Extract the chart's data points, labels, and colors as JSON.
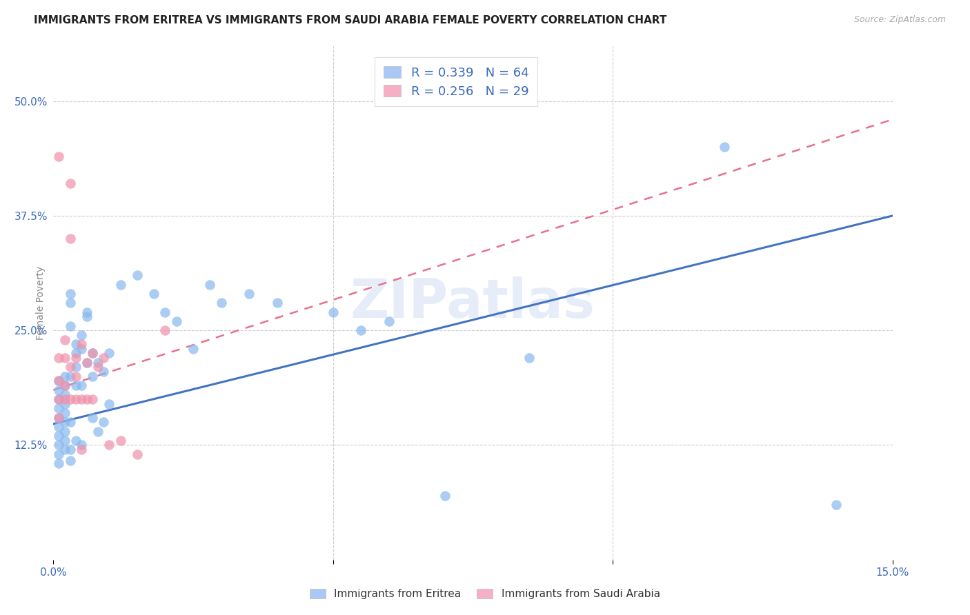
{
  "title": "IMMIGRANTS FROM ERITREA VS IMMIGRANTS FROM SAUDI ARABIA FEMALE POVERTY CORRELATION CHART",
  "source": "Source: ZipAtlas.com",
  "ylabel": "Female Poverty",
  "yticks_labels": [
    "12.5%",
    "25.0%",
    "37.5%",
    "50.0%"
  ],
  "ytick_vals": [
    0.125,
    0.25,
    0.375,
    0.5
  ],
  "xtick_vals": [
    0.0,
    0.05,
    0.1,
    0.15
  ],
  "xtick_labels": [
    "0.0%",
    "",
    "",
    "15.0%"
  ],
  "xlim": [
    0.0,
    0.15
  ],
  "ylim": [
    0.0,
    0.56
  ],
  "legend_label1": "R = 0.339   N = 64",
  "legend_label2": "R = 0.256   N = 29",
  "legend_color1": "#aac8f5",
  "legend_color2": "#f5b0c5",
  "scatter_color1": "#88b8ee",
  "scatter_color2": "#f090aa",
  "line_color1": "#4472c4",
  "line_color2": "#e8708a",
  "watermark": "ZIPatlas",
  "title_fontsize": 11,
  "axis_label_fontsize": 10,
  "tick_fontsize": 11,
  "blue_line_y0": 0.148,
  "blue_line_y1": 0.375,
  "pink_line_y0": 0.185,
  "pink_line_y1": 0.48,
  "eritrea_x": [
    0.001,
    0.001,
    0.001,
    0.001,
    0.001,
    0.001,
    0.001,
    0.001,
    0.001,
    0.001,
    0.002,
    0.002,
    0.002,
    0.002,
    0.002,
    0.002,
    0.002,
    0.002,
    0.002,
    0.003,
    0.003,
    0.003,
    0.003,
    0.003,
    0.003,
    0.003,
    0.004,
    0.004,
    0.004,
    0.004,
    0.004,
    0.005,
    0.005,
    0.005,
    0.005,
    0.006,
    0.006,
    0.006,
    0.007,
    0.007,
    0.007,
    0.008,
    0.008,
    0.009,
    0.009,
    0.01,
    0.01,
    0.012,
    0.015,
    0.018,
    0.02,
    0.022,
    0.025,
    0.028,
    0.03,
    0.035,
    0.04,
    0.05,
    0.055,
    0.06,
    0.07,
    0.085,
    0.12,
    0.14
  ],
  "eritrea_y": [
    0.195,
    0.185,
    0.175,
    0.165,
    0.155,
    0.145,
    0.135,
    0.125,
    0.115,
    0.105,
    0.2,
    0.19,
    0.18,
    0.17,
    0.16,
    0.15,
    0.14,
    0.13,
    0.12,
    0.29,
    0.28,
    0.255,
    0.2,
    0.15,
    0.12,
    0.108,
    0.235,
    0.225,
    0.21,
    0.19,
    0.13,
    0.245,
    0.23,
    0.19,
    0.125,
    0.27,
    0.265,
    0.215,
    0.225,
    0.2,
    0.155,
    0.215,
    0.14,
    0.205,
    0.15,
    0.225,
    0.17,
    0.3,
    0.31,
    0.29,
    0.27,
    0.26,
    0.23,
    0.3,
    0.28,
    0.29,
    0.28,
    0.27,
    0.25,
    0.26,
    0.07,
    0.22,
    0.45,
    0.06
  ],
  "saudi_x": [
    0.001,
    0.001,
    0.001,
    0.001,
    0.001,
    0.002,
    0.002,
    0.002,
    0.002,
    0.003,
    0.003,
    0.003,
    0.003,
    0.004,
    0.004,
    0.004,
    0.005,
    0.005,
    0.005,
    0.006,
    0.006,
    0.007,
    0.007,
    0.008,
    0.009,
    0.01,
    0.012,
    0.015,
    0.02
  ],
  "saudi_y": [
    0.44,
    0.22,
    0.195,
    0.175,
    0.155,
    0.24,
    0.22,
    0.19,
    0.175,
    0.41,
    0.35,
    0.21,
    0.175,
    0.22,
    0.2,
    0.175,
    0.235,
    0.175,
    0.12,
    0.215,
    0.175,
    0.225,
    0.175,
    0.21,
    0.22,
    0.125,
    0.13,
    0.115,
    0.25
  ]
}
